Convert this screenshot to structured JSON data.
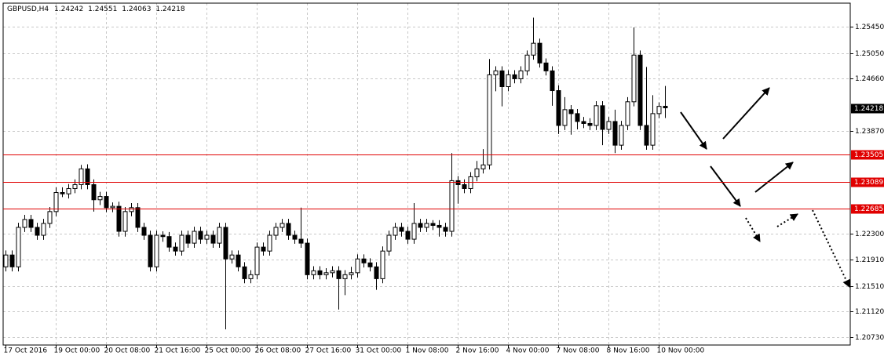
{
  "chart_data": {
    "type": "candlestick",
    "title": "GBPUSD,H4",
    "categories": [
      "17 Oct 2016",
      null,
      null,
      null,
      null,
      null,
      null,
      null,
      "19 Oct 00:00",
      null,
      null,
      null,
      null,
      null,
      null,
      null,
      "20 Oct 08:00",
      null,
      null,
      null,
      null,
      null,
      null,
      null,
      "21 Oct 16:00",
      null,
      null,
      null,
      null,
      null,
      null,
      null,
      "25 Oct 00:00",
      null,
      null,
      null,
      null,
      null,
      null,
      null,
      "26 Oct 08:00",
      null,
      null,
      null,
      null,
      null,
      null,
      null,
      "27 Oct 16:00",
      null,
      null,
      null,
      null,
      null,
      null,
      null,
      "31 Oct 00:00",
      null,
      null,
      null,
      null,
      null,
      null,
      null,
      "1 Nov 08:00",
      null,
      null,
      null,
      null,
      null,
      null,
      null,
      "2 Nov 16:00",
      null,
      null,
      null,
      null,
      null,
      null,
      null,
      "4 Nov 00:00",
      null,
      null,
      null,
      null,
      null,
      null,
      null,
      "7 Nov 08:00",
      null,
      null,
      null,
      null,
      null,
      null,
      null,
      "8 Nov 16:00",
      null,
      null,
      null,
      null,
      null,
      null,
      null,
      "10 Nov 00:00",
      null
    ],
    "open": [
      1.218,
      1.2198,
      1.218,
      1.224,
      1.2252,
      1.224,
      1.2228,
      1.2246,
      1.2264,
      1.2293,
      1.2291,
      1.2299,
      1.2305,
      1.2329,
      1.2305,
      1.2282,
      1.2287,
      1.227,
      1.2272,
      1.2234,
      1.2264,
      1.227,
      1.224,
      1.2228,
      1.218,
      1.2228,
      1.2226,
      1.221,
      1.2204,
      1.2228,
      1.2216,
      1.2234,
      1.2222,
      1.2228,
      1.2216,
      1.224,
      1.2192,
      1.2198,
      1.218,
      1.2162,
      1.2168,
      1.221,
      1.2204,
      1.2228,
      1.224,
      1.2246,
      1.2228,
      1.2222,
      1.2216,
      1.2168,
      1.2174,
      1.2168,
      1.2171,
      1.2174,
      1.2162,
      1.2168,
      1.2171,
      1.2192,
      1.2186,
      1.218,
      1.2162,
      1.2204,
      1.2228,
      1.224,
      1.2234,
      1.2222,
      1.2246,
      1.224,
      1.2246,
      1.2243,
      1.224,
      1.2234,
      1.2311,
      1.2305,
      1.2299,
      1.2317,
      1.2329,
      1.2335,
      1.2472,
      1.2478,
      1.2454,
      1.2472,
      1.2466,
      1.2478,
      1.2502,
      1.252,
      1.249,
      1.2478,
      1.2448,
      1.2395,
      1.2419,
      1.2413,
      1.2401,
      1.2398,
      1.2395,
      1.2425,
      1.2389,
      1.2401,
      1.2365,
      1.2395,
      1.2431,
      1.2502,
      1.2395,
      1.2365,
      1.2413,
      1.24242
    ],
    "high": [
      1.2205,
      1.2205,
      1.2247,
      1.2259,
      1.2259,
      1.2247,
      1.2253,
      1.2271,
      1.2301,
      1.2301,
      1.2306,
      1.2313,
      1.2335,
      1.2336,
      1.2313,
      1.2294,
      1.2294,
      1.2278,
      1.2279,
      1.2271,
      1.2277,
      1.2277,
      1.2247,
      1.2235,
      1.2235,
      1.2234,
      1.2233,
      1.2217,
      1.2235,
      1.2235,
      1.2241,
      1.2241,
      1.2235,
      1.2235,
      1.2247,
      1.2247,
      1.2205,
      1.2205,
      1.2187,
      1.2175,
      1.2217,
      1.2217,
      1.2235,
      1.2247,
      1.2253,
      1.2253,
      1.2235,
      1.227,
      1.2223,
      1.2181,
      1.2181,
      1.2178,
      1.2181,
      1.2181,
      1.2175,
      1.218,
      1.2199,
      1.2199,
      1.2193,
      1.2187,
      1.2211,
      1.2235,
      1.2247,
      1.2247,
      1.2241,
      1.2277,
      1.2253,
      1.2253,
      1.2251,
      1.2251,
      1.2247,
      1.2353,
      1.2318,
      1.2313,
      1.2324,
      1.2341,
      1.2359,
      1.2496,
      1.2485,
      1.2485,
      1.2479,
      1.2479,
      1.2485,
      1.2509,
      1.2559,
      1.2527,
      1.2497,
      1.2485,
      1.2456,
      1.2438,
      1.2426,
      1.242,
      1.2408,
      1.2406,
      1.2432,
      1.2432,
      1.2408,
      1.2419,
      1.2402,
      1.2438,
      1.2544,
      1.2509,
      1.2484,
      1.2441,
      1.243,
      1.24551
    ],
    "low": [
      1.2173,
      1.2173,
      1.2173,
      1.2233,
      1.2233,
      1.2221,
      1.2221,
      1.2239,
      1.2257,
      1.2286,
      1.2284,
      1.2292,
      1.2298,
      1.2298,
      1.2264,
      1.2274,
      1.2263,
      1.2263,
      1.2226,
      1.2226,
      1.2257,
      1.2233,
      1.2221,
      1.2173,
      1.2173,
      1.2218,
      1.2203,
      1.2197,
      1.2197,
      1.2209,
      1.2209,
      1.2215,
      1.2215,
      1.2209,
      1.2209,
      1.2085,
      1.2185,
      1.2173,
      1.2155,
      1.2155,
      1.2161,
      1.2197,
      1.2197,
      1.2221,
      1.2233,
      1.2221,
      1.2215,
      1.2209,
      1.2161,
      1.2161,
      1.2161,
      1.2161,
      1.2164,
      1.2115,
      1.2137,
      1.2161,
      1.2164,
      1.2179,
      1.2173,
      1.2145,
      1.2155,
      1.2197,
      1.2221,
      1.2226,
      1.2215,
      1.2215,
      1.2233,
      1.2233,
      1.2236,
      1.2226,
      1.2226,
      1.2226,
      1.2276,
      1.2292,
      1.2292,
      1.231,
      1.2322,
      1.2328,
      1.2447,
      1.2424,
      1.2447,
      1.2459,
      1.2459,
      1.2471,
      1.2495,
      1.2483,
      1.2471,
      1.2425,
      1.2382,
      1.2388,
      1.2381,
      1.2389,
      1.2391,
      1.2388,
      1.2388,
      1.2365,
      1.2382,
      1.2353,
      1.2358,
      1.2388,
      1.2424,
      1.2388,
      1.2358,
      1.2358,
      1.2406,
      1.24063
    ],
    "close": [
      1.2198,
      1.218,
      1.224,
      1.2252,
      1.224,
      1.2228,
      1.2246,
      1.2264,
      1.2293,
      1.2291,
      1.2299,
      1.2305,
      1.2329,
      1.2305,
      1.2282,
      1.2287,
      1.227,
      1.2272,
      1.2234,
      1.2264,
      1.227,
      1.224,
      1.2228,
      1.218,
      1.2228,
      1.2226,
      1.221,
      1.2204,
      1.2228,
      1.2216,
      1.2234,
      1.2222,
      1.2228,
      1.2216,
      1.224,
      1.2192,
      1.2198,
      1.218,
      1.2162,
      1.2168,
      1.221,
      1.2204,
      1.2228,
      1.224,
      1.2246,
      1.2228,
      1.2222,
      1.2216,
      1.2168,
      1.2174,
      1.2168,
      1.2171,
      1.2174,
      1.2162,
      1.2168,
      1.2171,
      1.2192,
      1.2186,
      1.218,
      1.2162,
      1.2204,
      1.2228,
      1.224,
      1.2234,
      1.2222,
      1.2246,
      1.224,
      1.2246,
      1.2243,
      1.224,
      1.2234,
      1.2311,
      1.2305,
      1.2299,
      1.2317,
      1.2329,
      1.2335,
      1.2472,
      1.2478,
      1.2454,
      1.2472,
      1.2466,
      1.2478,
      1.2502,
      1.252,
      1.249,
      1.2478,
      1.2448,
      1.2395,
      1.2419,
      1.2413,
      1.2401,
      1.2398,
      1.2395,
      1.2425,
      1.2389,
      1.2401,
      1.2365,
      1.2395,
      1.2431,
      1.2502,
      1.2395,
      1.2365,
      1.2413,
      1.2424,
      1.24218
    ],
    "bull_color": "#ffffff",
    "bear_color": "#000000",
    "ylim": [
      1.20611,
      1.2581
    ],
    "yticks": [
      {
        "value": 1.2545,
        "label": "1.25450"
      },
      {
        "value": 1.2505,
        "label": "1.25050"
      },
      {
        "value": 1.2466,
        "label": "1.24660"
      },
      {
        "value": 1.2387,
        "label": "1.23870"
      },
      {
        "value": 1.223,
        "label": "1.22300"
      },
      {
        "value": 1.2191,
        "label": "1.21910"
      },
      {
        "value": 1.2151,
        "label": "1.21510"
      },
      {
        "value": 1.2112,
        "label": "1.21120"
      },
      {
        "value": 1.2073,
        "label": "1.20730"
      }
    ],
    "grid": true,
    "levels": [
      1.23505,
      1.23089,
      1.22685
    ],
    "level_color": "#e00000"
  }
}
